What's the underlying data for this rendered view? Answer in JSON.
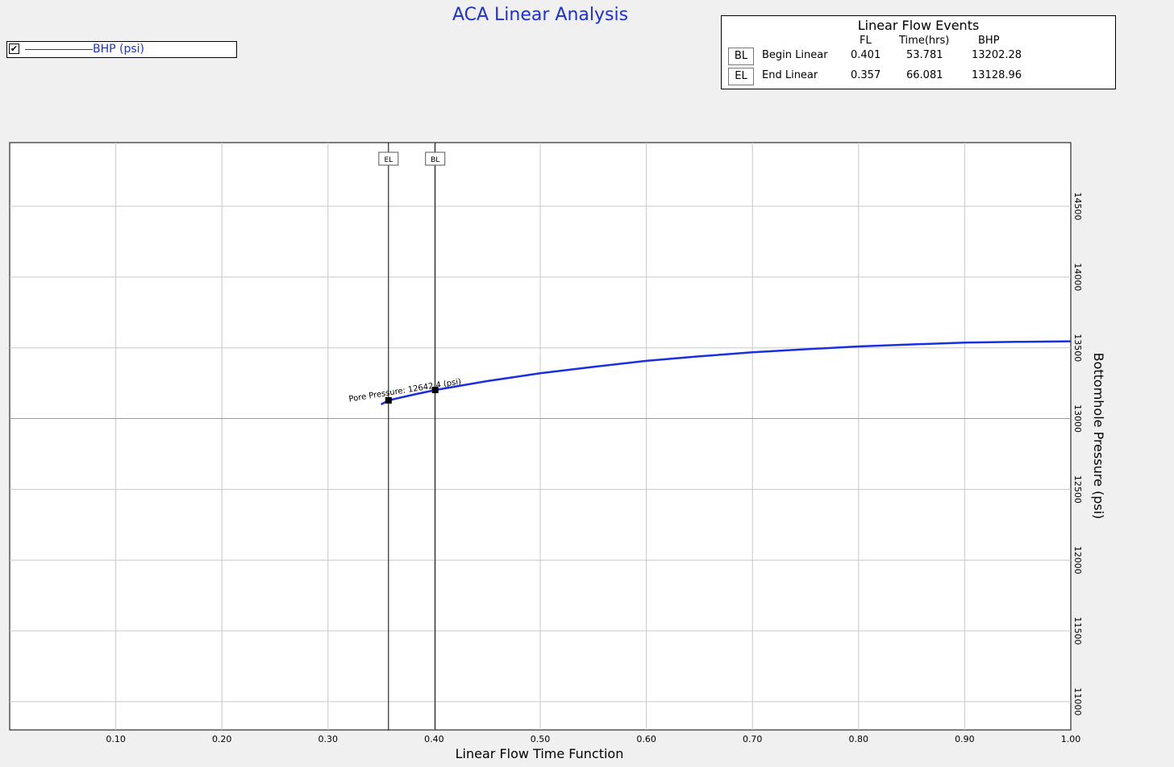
{
  "chart_data": {
    "type": "line",
    "title": "ACA Linear Analysis",
    "xlabel": "Linear Flow Time Function",
    "ylabel": "Bottomhole Pressure (psi)",
    "xlim": [
      0.0,
      1.0
    ],
    "ylim": [
      10800,
      14950
    ],
    "x_ticks": [
      "0.10",
      "0.20",
      "0.30",
      "0.40",
      "0.50",
      "0.60",
      "0.70",
      "0.80",
      "0.90",
      "1.00"
    ],
    "y_ticks": [
      "11000",
      "11500",
      "12000",
      "12500",
      "13000",
      "13500",
      "14000",
      "14500"
    ],
    "grid": true,
    "series": [
      {
        "name": "BHP (psi)",
        "color": "#1a2fe0",
        "x": [
          0.35,
          0.357,
          0.38,
          0.401,
          0.45,
          0.5,
          0.55,
          0.6,
          0.65,
          0.7,
          0.75,
          0.8,
          0.85,
          0.9,
          0.95,
          1.0
        ],
        "y": [
          13100,
          13129,
          13168,
          13202,
          13265,
          13320,
          13365,
          13408,
          13440,
          13468,
          13490,
          13510,
          13524,
          13537,
          13542,
          13546
        ]
      }
    ],
    "markers": [
      {
        "label": "EL",
        "x": 0.357,
        "y": 13128.96
      },
      {
        "label": "BL",
        "x": 0.401,
        "y": 13202.28
      }
    ],
    "annotation": {
      "text": "Pore Pressure: 12642.4 (psi)",
      "x": 0.32,
      "y": 13120
    }
  },
  "legend": {
    "checked_mark": "✔",
    "series_label": "BHP (psi)"
  },
  "events_panel": {
    "title": "Linear Flow Events",
    "headers": {
      "fl": "FL",
      "time": "Time(hrs)",
      "bhp": "BHP"
    },
    "rows": [
      {
        "tag": "BL",
        "name": "Begin Linear",
        "fl": "0.401",
        "time": "53.781",
        "bhp": "13202.28"
      },
      {
        "tag": "EL",
        "name": "End Linear",
        "fl": "0.357",
        "time": "66.081",
        "bhp": "13128.96"
      }
    ]
  }
}
